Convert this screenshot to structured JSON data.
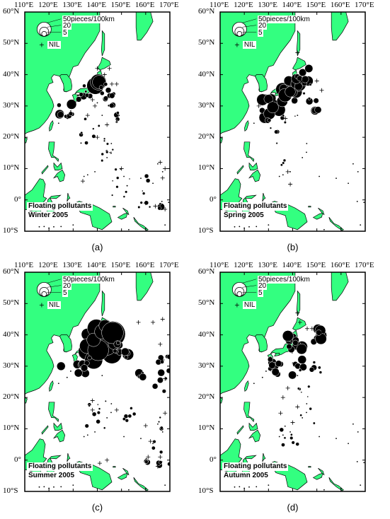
{
  "longitude_labels": [
    "110°E",
    "120°E",
    "130°E",
    "140°E",
    "150°E",
    "160°E",
    "170°E"
  ],
  "latitude_labels": [
    "60°N",
    "50°N",
    "40°N",
    "30°N",
    "20°N",
    "10°N",
    "0°",
    "10°S"
  ],
  "legend": {
    "values": [
      "50pieces/100km",
      "20",
      "5"
    ]
  },
  "nil_label": "NIL",
  "colors": {
    "land": "#33ff80",
    "ocean": "#ffffff",
    "marker": "#000000"
  },
  "panels": [
    {
      "caption": "(a)",
      "title_line1": "Floating pollutants",
      "title_line2": "Winter 2005"
    },
    {
      "caption": "(b)",
      "title_line1": "Floating pollutants",
      "title_line2": "Spring 2005"
    },
    {
      "caption": "(c)",
      "title_line1": "Floating pollutants",
      "title_line2": "Summer 2005"
    },
    {
      "caption": "(d)",
      "title_line1": "Floating pollutants",
      "title_line2": "Autumn 2005"
    }
  ]
}
